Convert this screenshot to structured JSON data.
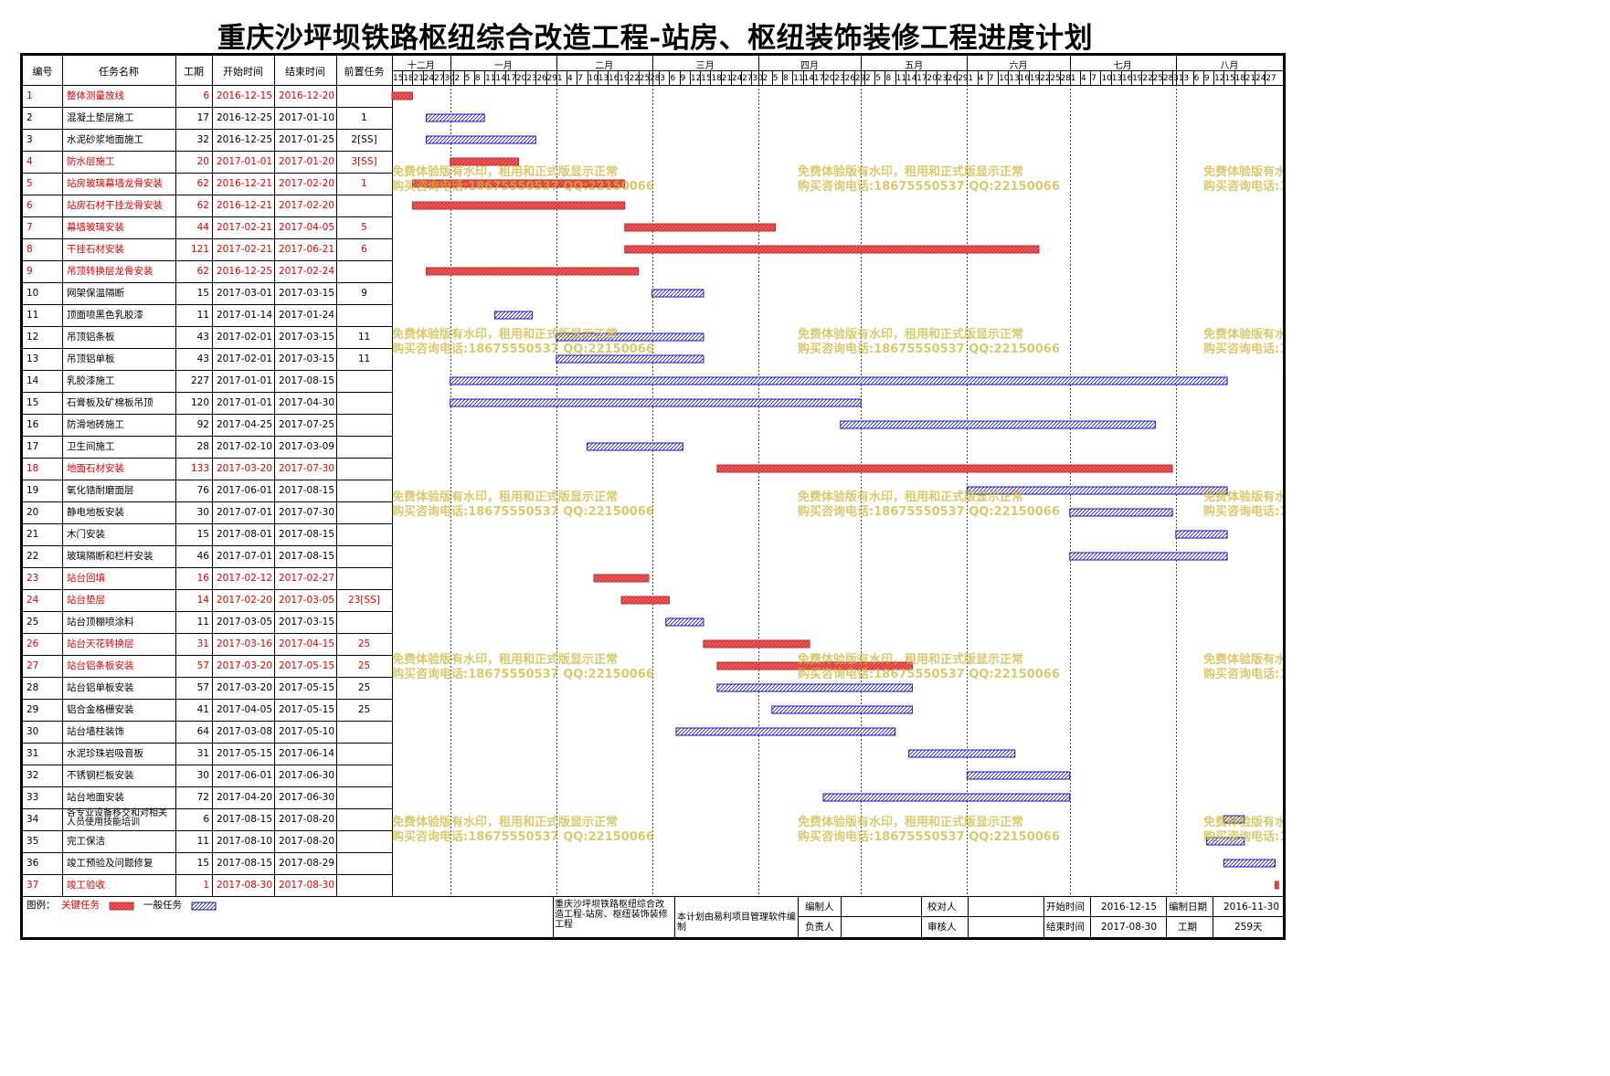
{
  "title": "重庆沙坪坝铁路枢纽综合改造工程-站房、枢纽装饰装修工程进度计划",
  "columns": [
    "编号",
    "任务名称",
    "工期",
    "开始时间",
    "结束时间",
    "前置任务"
  ],
  "colors": {
    "critical_fill": "#f05a5a",
    "critical_text": "#e00000",
    "normal_fill": "#ffffff",
    "normal_stroke": "#1a1aa8",
    "watermark": "#d4b843"
  },
  "months": [
    "十二月",
    "一月",
    "二月",
    "三月",
    "四月",
    "五月",
    "六月",
    "七月",
    "八月"
  ],
  "day_labels": [
    [
      "15",
      "18",
      "21",
      "24",
      "27",
      "30"
    ],
    [
      "2",
      "5",
      "8",
      "11",
      "14",
      "17",
      "20",
      "23",
      "26",
      "29"
    ],
    [
      "1",
      "4",
      "7",
      "10",
      "13",
      "16",
      "19",
      "22",
      "25",
      "28"
    ],
    [
      "3",
      "6",
      "9",
      "12",
      "15",
      "18",
      "21",
      "24",
      "27",
      "30"
    ],
    [
      "2",
      "5",
      "8",
      "11",
      "14",
      "17",
      "20",
      "23",
      "26",
      "29"
    ],
    [
      "2",
      "5",
      "8",
      "11",
      "14",
      "17",
      "20",
      "23",
      "26",
      "29"
    ],
    [
      "1",
      "4",
      "7",
      "10",
      "13",
      "16",
      "19",
      "22",
      "25",
      "28"
    ],
    [
      "1",
      "4",
      "7",
      "10",
      "13",
      "16",
      "19",
      "22",
      "25",
      "28",
      "31"
    ],
    [
      "3",
      "6",
      "9",
      "12",
      "15",
      "18",
      "21",
      "24",
      "27"
    ]
  ],
  "chart_data": {
    "type": "gantt",
    "title": "重庆沙坪坝铁路枢纽综合改造工程-站房、枢纽装饰装修工程进度计划",
    "x_range": [
      "2016-12-15",
      "2017-08-30"
    ],
    "x_unit": "date",
    "tasks": [
      {
        "id": "1",
        "name": "整体测量放线",
        "duration": "6",
        "start": "2016-12-15",
        "end": "2016-12-20",
        "pred": "",
        "critical": true
      },
      {
        "id": "2",
        "name": "混凝土垫层施工",
        "duration": "17",
        "start": "2016-12-25",
        "end": "2017-01-10",
        "pred": "1",
        "critical": false
      },
      {
        "id": "3",
        "name": "水泥砂浆地面施工",
        "duration": "32",
        "start": "2016-12-25",
        "end": "2017-01-25",
        "pred": "2[SS]",
        "critical": false
      },
      {
        "id": "4",
        "name": "防水层施工",
        "duration": "20",
        "start": "2017-01-01",
        "end": "2017-01-20",
        "pred": "3[SS]",
        "critical": true
      },
      {
        "id": "5",
        "name": "站房玻璃幕墙龙骨安装",
        "duration": "62",
        "start": "2016-12-21",
        "end": "2017-02-20",
        "pred": "1",
        "critical": true
      },
      {
        "id": "6",
        "name": "站房石材干挂龙骨安装",
        "duration": "62",
        "start": "2016-12-21",
        "end": "2017-02-20",
        "pred": "",
        "critical": true
      },
      {
        "id": "7",
        "name": "幕墙玻璃安装",
        "duration": "44",
        "start": "2017-02-21",
        "end": "2017-04-05",
        "pred": "5",
        "critical": true
      },
      {
        "id": "8",
        "name": "干挂石材安装",
        "duration": "121",
        "start": "2017-02-21",
        "end": "2017-06-21",
        "pred": "6",
        "critical": true
      },
      {
        "id": "9",
        "name": "吊顶转换层龙骨安装",
        "duration": "62",
        "start": "2016-12-25",
        "end": "2017-02-24",
        "pred": "",
        "critical": true
      },
      {
        "id": "10",
        "name": "网架保温隔断",
        "duration": "15",
        "start": "2017-03-01",
        "end": "2017-03-15",
        "pred": "9",
        "critical": false
      },
      {
        "id": "11",
        "name": "顶面喷黑色乳胶漆",
        "duration": "11",
        "start": "2017-01-14",
        "end": "2017-01-24",
        "pred": "",
        "critical": false
      },
      {
        "id": "12",
        "name": "吊顶铝条板",
        "duration": "43",
        "start": "2017-02-01",
        "end": "2017-03-15",
        "pred": "11",
        "critical": false
      },
      {
        "id": "13",
        "name": "吊顶铝单板",
        "duration": "43",
        "start": "2017-02-01",
        "end": "2017-03-15",
        "pred": "11",
        "critical": false
      },
      {
        "id": "14",
        "name": "乳胶漆施工",
        "duration": "227",
        "start": "2017-01-01",
        "end": "2017-08-15",
        "pred": "",
        "critical": false
      },
      {
        "id": "15",
        "name": "石膏板及矿棉板吊顶",
        "duration": "120",
        "start": "2017-01-01",
        "end": "2017-04-30",
        "pred": "",
        "critical": false
      },
      {
        "id": "16",
        "name": "防滑地砖施工",
        "duration": "92",
        "start": "2017-04-25",
        "end": "2017-07-25",
        "pred": "",
        "critical": false
      },
      {
        "id": "17",
        "name": "卫生间施工",
        "duration": "28",
        "start": "2017-02-10",
        "end": "2017-03-09",
        "pred": "",
        "critical": false
      },
      {
        "id": "18",
        "name": "地面石材安装",
        "duration": "133",
        "start": "2017-03-20",
        "end": "2017-07-30",
        "pred": "",
        "critical": true
      },
      {
        "id": "19",
        "name": "氧化锆耐磨面层",
        "duration": "76",
        "start": "2017-06-01",
        "end": "2017-08-15",
        "pred": "",
        "critical": false
      },
      {
        "id": "20",
        "name": "静电地板安装",
        "duration": "30",
        "start": "2017-07-01",
        "end": "2017-07-30",
        "pred": "",
        "critical": false
      },
      {
        "id": "21",
        "name": "木门安装",
        "duration": "15",
        "start": "2017-08-01",
        "end": "2017-08-15",
        "pred": "",
        "critical": false
      },
      {
        "id": "22",
        "name": "玻璃隔断和栏杆安装",
        "duration": "46",
        "start": "2017-07-01",
        "end": "2017-08-15",
        "pred": "",
        "critical": false
      },
      {
        "id": "23",
        "name": "站台回填",
        "duration": "16",
        "start": "2017-02-12",
        "end": "2017-02-27",
        "pred": "",
        "critical": true
      },
      {
        "id": "24",
        "name": "站台垫层",
        "duration": "14",
        "start": "2017-02-20",
        "end": "2017-03-05",
        "pred": "23[SS]",
        "critical": true
      },
      {
        "id": "25",
        "name": "站台顶棚喷涂料",
        "duration": "11",
        "start": "2017-03-05",
        "end": "2017-03-15",
        "pred": "",
        "critical": false
      },
      {
        "id": "26",
        "name": "站台天花转换层",
        "duration": "31",
        "start": "2017-03-16",
        "end": "2017-04-15",
        "pred": "25",
        "critical": true
      },
      {
        "id": "27",
        "name": "站台铝条板安装",
        "duration": "57",
        "start": "2017-03-20",
        "end": "2017-05-15",
        "pred": "25",
        "critical": true
      },
      {
        "id": "28",
        "name": "站台铝单板安装",
        "duration": "57",
        "start": "2017-03-20",
        "end": "2017-05-15",
        "pred": "25",
        "critical": false
      },
      {
        "id": "29",
        "name": "铝合金格栅安装",
        "duration": "41",
        "start": "2017-04-05",
        "end": "2017-05-15",
        "pred": "25",
        "critical": false
      },
      {
        "id": "30",
        "name": "站台墙柱装饰",
        "duration": "64",
        "start": "2017-03-08",
        "end": "2017-05-10",
        "pred": "",
        "critical": false
      },
      {
        "id": "31",
        "name": "水泥珍珠岩吸音板",
        "duration": "31",
        "start": "2017-05-15",
        "end": "2017-06-14",
        "pred": "",
        "critical": false
      },
      {
        "id": "32",
        "name": "不锈钢栏板安装",
        "duration": "30",
        "start": "2017-06-01",
        "end": "2017-06-30",
        "pred": "",
        "critical": false
      },
      {
        "id": "33",
        "name": "站台地面安装",
        "duration": "72",
        "start": "2017-04-20",
        "end": "2017-06-30",
        "pred": "",
        "critical": false
      },
      {
        "id": "34",
        "name": "各专业设备移交和对相关人员使用技能培训",
        "duration": "6",
        "start": "2017-08-15",
        "end": "2017-08-20",
        "pred": "",
        "critical": false
      },
      {
        "id": "35",
        "name": "完工保洁",
        "duration": "11",
        "start": "2017-08-10",
        "end": "2017-08-20",
        "pred": "",
        "critical": false
      },
      {
        "id": "36",
        "name": "竣工预验及问题修复",
        "duration": "15",
        "start": "2017-08-15",
        "end": "2017-08-29",
        "pred": "",
        "critical": false
      },
      {
        "id": "37",
        "name": "竣工验收",
        "duration": "1",
        "start": "2017-08-30",
        "end": "2017-08-30",
        "pred": "",
        "critical": true
      }
    ]
  },
  "watermark": {
    "line1": "免费体验版有水印，租用和正式版显示正常",
    "line2": "购买咨询电话:18675550537 QQ:22150066"
  },
  "legend": {
    "label": "图例：",
    "critical_label": "关键任务",
    "normal_label": "一般任务"
  },
  "footer": {
    "project": "重庆沙坪坝铁路枢纽综合改造工程-站房、枢纽装饰装修工程",
    "software_note": "本计划由易利项目管理软件编制",
    "editor_label": "编制人",
    "reviewer_label": "校对人",
    "owner_label": "负责人",
    "auditor_label": "审核人",
    "start_label": "开始时间",
    "start_value": "2016-12-15",
    "end_label": "结束时间",
    "end_value": "2017-08-30",
    "date_label": "编制日期",
    "date_value": "2016-11-30",
    "duration_label": "工期",
    "duration_value": "259天"
  }
}
